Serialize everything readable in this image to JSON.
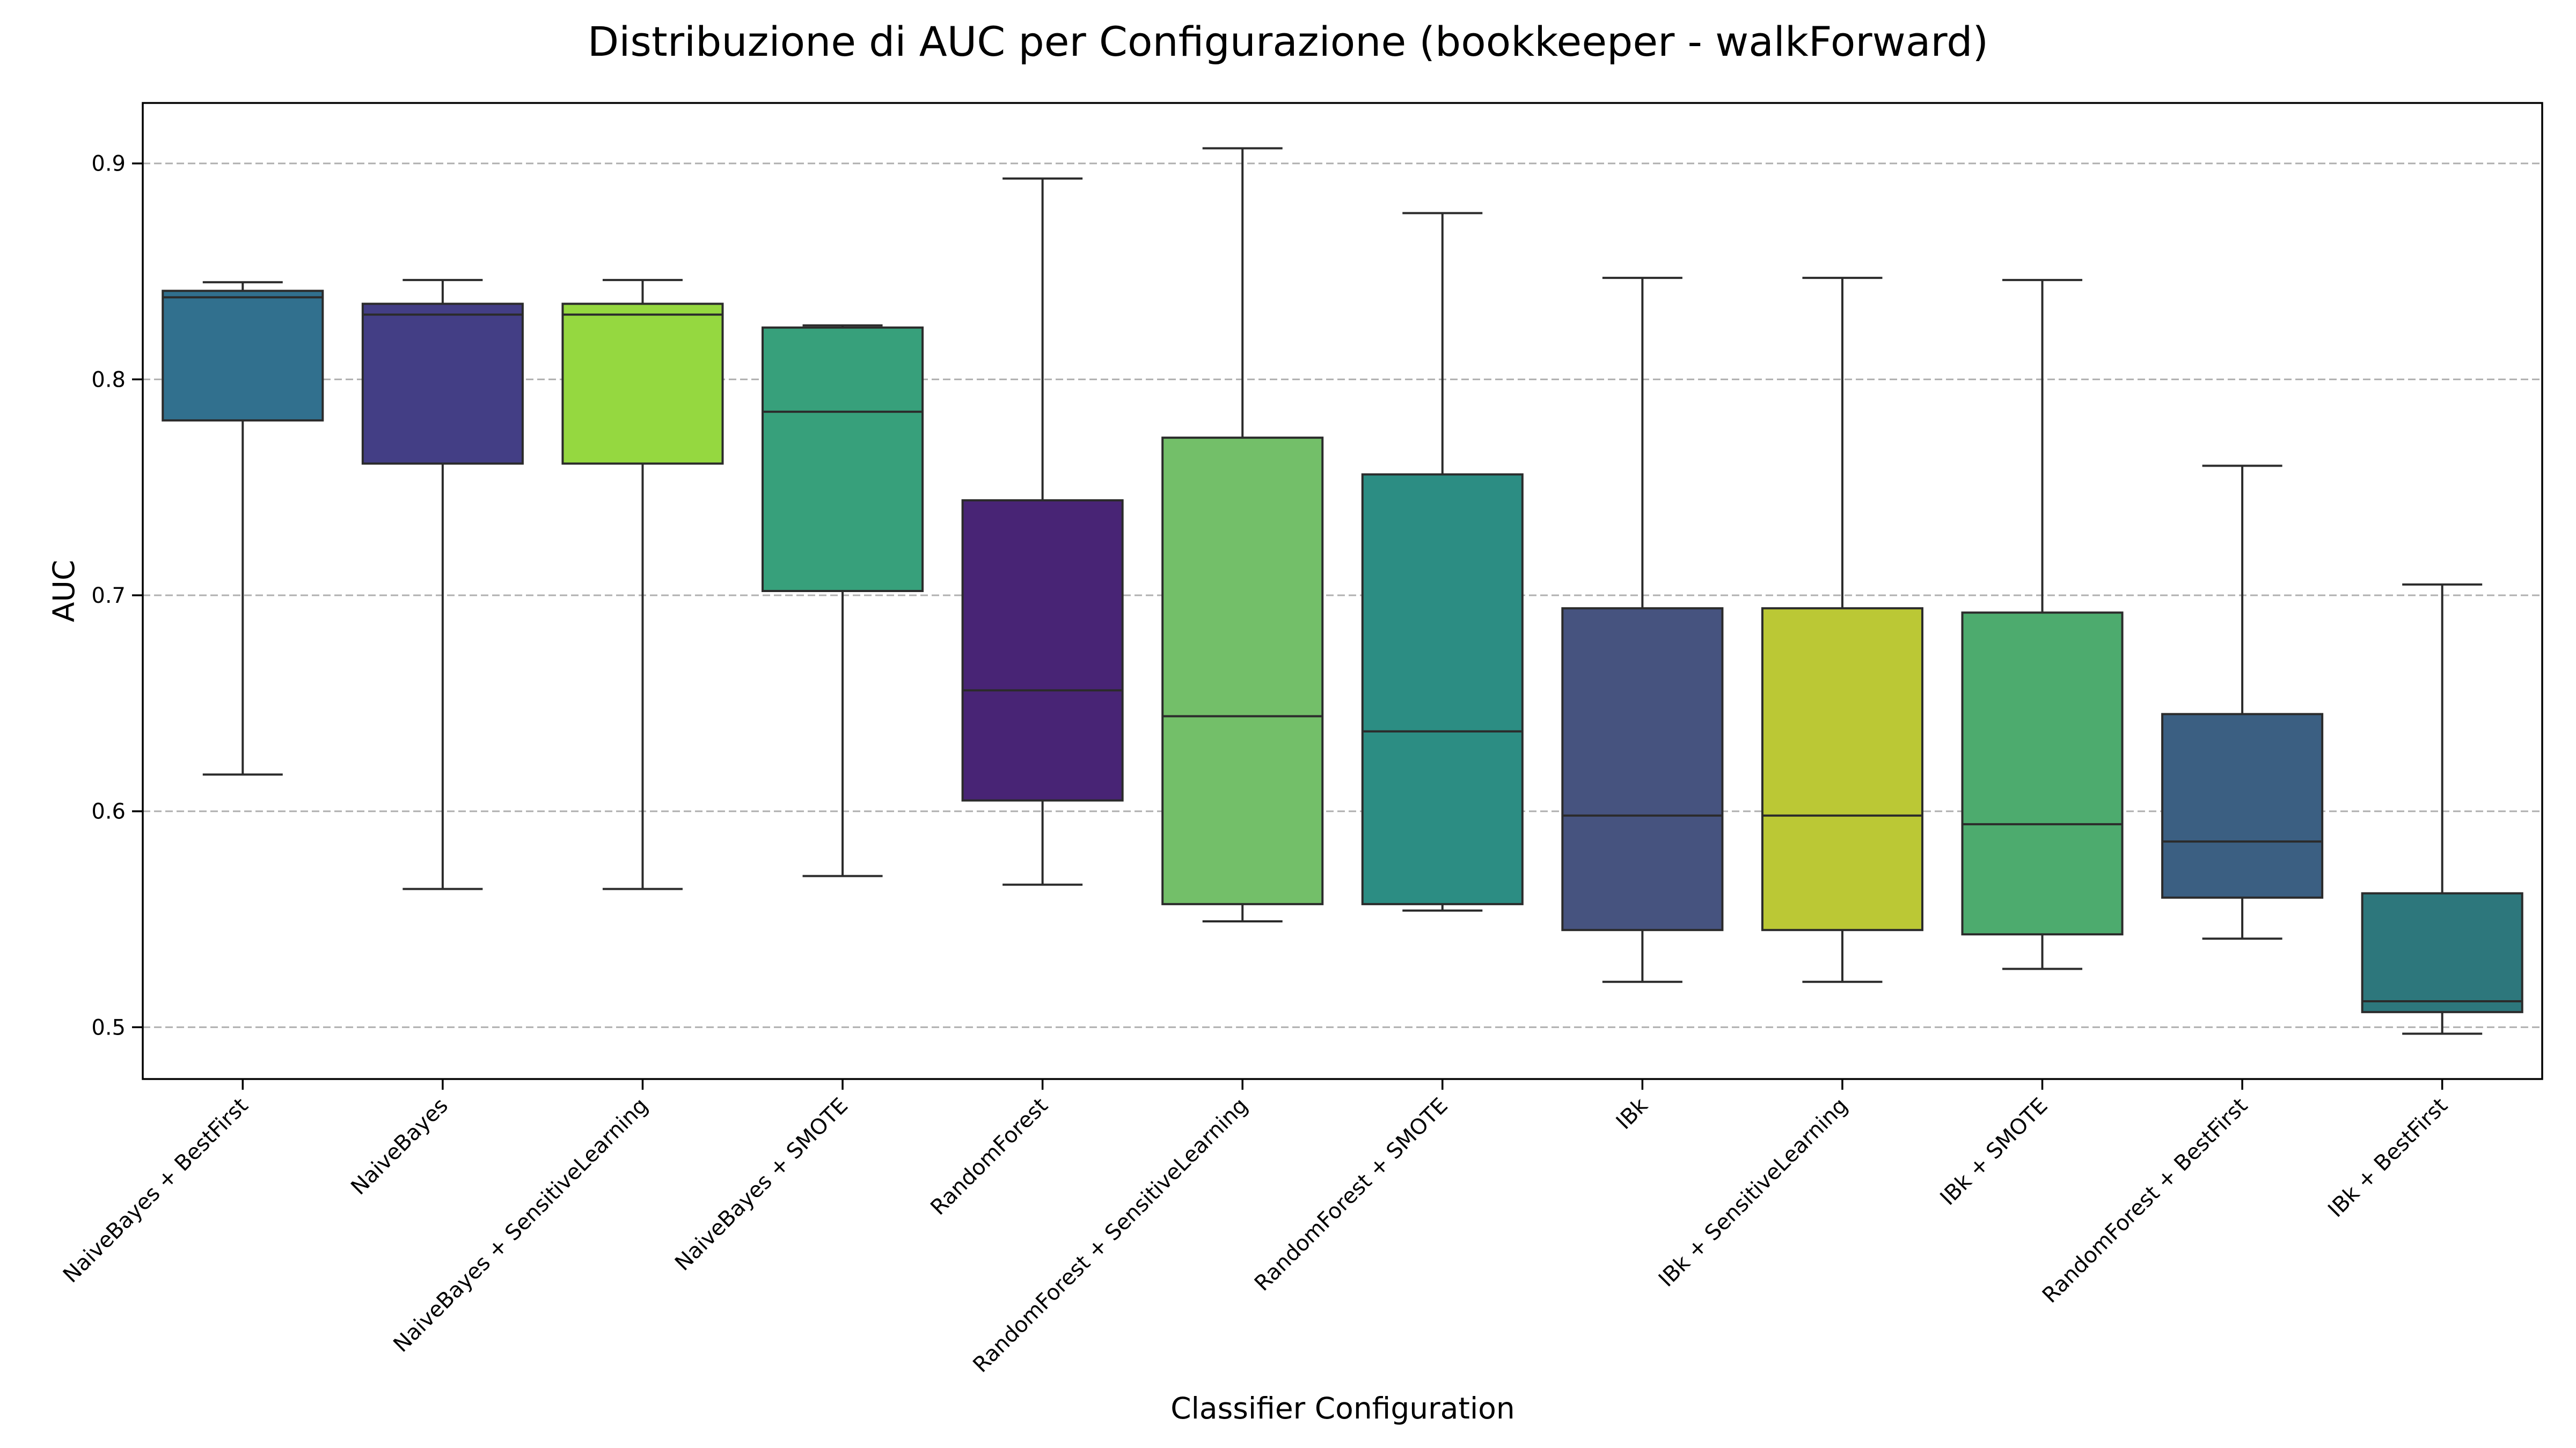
{
  "chart_data": {
    "type": "box",
    "title": "Distribuzione di AUC per Configurazione (bookkeeper - walkForward)",
    "xlabel": "Classifier Configuration",
    "ylabel": "AUC",
    "ylim": [
      0.476,
      0.928
    ],
    "yticks": [
      0.5,
      0.6,
      0.7,
      0.8,
      0.9
    ],
    "ytick_labels": [
      "0.5",
      "0.6",
      "0.7",
      "0.8",
      "0.9"
    ],
    "grid": "horizontal dashed",
    "series": [
      {
        "category": "NaiveBayes + BestFirst",
        "whisker_low": 0.617,
        "q1": 0.781,
        "median": 0.838,
        "q3": 0.841,
        "whisker_high": 0.845,
        "color": "#31708e"
      },
      {
        "category": "NaiveBayes",
        "whisker_low": 0.564,
        "q1": 0.761,
        "median": 0.83,
        "q3": 0.835,
        "whisker_high": 0.846,
        "color": "#433e85"
      },
      {
        "category": "NaiveBayes + SensitiveLearning",
        "whisker_low": 0.564,
        "q1": 0.761,
        "median": 0.83,
        "q3": 0.835,
        "whisker_high": 0.846,
        "color": "#95d840"
      },
      {
        "category": "NaiveBayes + SMOTE",
        "whisker_low": 0.57,
        "q1": 0.702,
        "median": 0.785,
        "q3": 0.824,
        "whisker_high": 0.825,
        "color": "#37a07b"
      },
      {
        "category": "RandomForest",
        "whisker_low": 0.566,
        "q1": 0.605,
        "median": 0.656,
        "q3": 0.744,
        "whisker_high": 0.893,
        "color": "#482475"
      },
      {
        "category": "RandomForest + SensitiveLearning",
        "whisker_low": 0.549,
        "q1": 0.557,
        "median": 0.644,
        "q3": 0.773,
        "whisker_high": 0.907,
        "color": "#73bf69"
      },
      {
        "category": "RandomForest + SMOTE",
        "whisker_low": 0.554,
        "q1": 0.557,
        "median": 0.637,
        "q3": 0.756,
        "whisker_high": 0.877,
        "color": "#2c8d83"
      },
      {
        "category": "IBk",
        "whisker_low": 0.521,
        "q1": 0.545,
        "median": 0.598,
        "q3": 0.694,
        "whisker_high": 0.847,
        "color": "#46537f"
      },
      {
        "category": "IBk + SensitiveLearning",
        "whisker_low": 0.521,
        "q1": 0.545,
        "median": 0.598,
        "q3": 0.694,
        "whisker_high": 0.847,
        "color": "#bbc835"
      },
      {
        "category": "IBk + SMOTE",
        "whisker_low": 0.527,
        "q1": 0.543,
        "median": 0.594,
        "q3": 0.692,
        "whisker_high": 0.846,
        "color": "#4dab6e"
      },
      {
        "category": "RandomForest + BestFirst",
        "whisker_low": 0.541,
        "q1": 0.56,
        "median": 0.586,
        "q3": 0.645,
        "whisker_high": 0.76,
        "color": "#3b5f82"
      },
      {
        "category": "IBk + BestFirst",
        "whisker_low": 0.497,
        "q1": 0.507,
        "median": 0.512,
        "q3": 0.562,
        "whisker_high": 0.705,
        "color": "#2d777c"
      }
    ]
  }
}
